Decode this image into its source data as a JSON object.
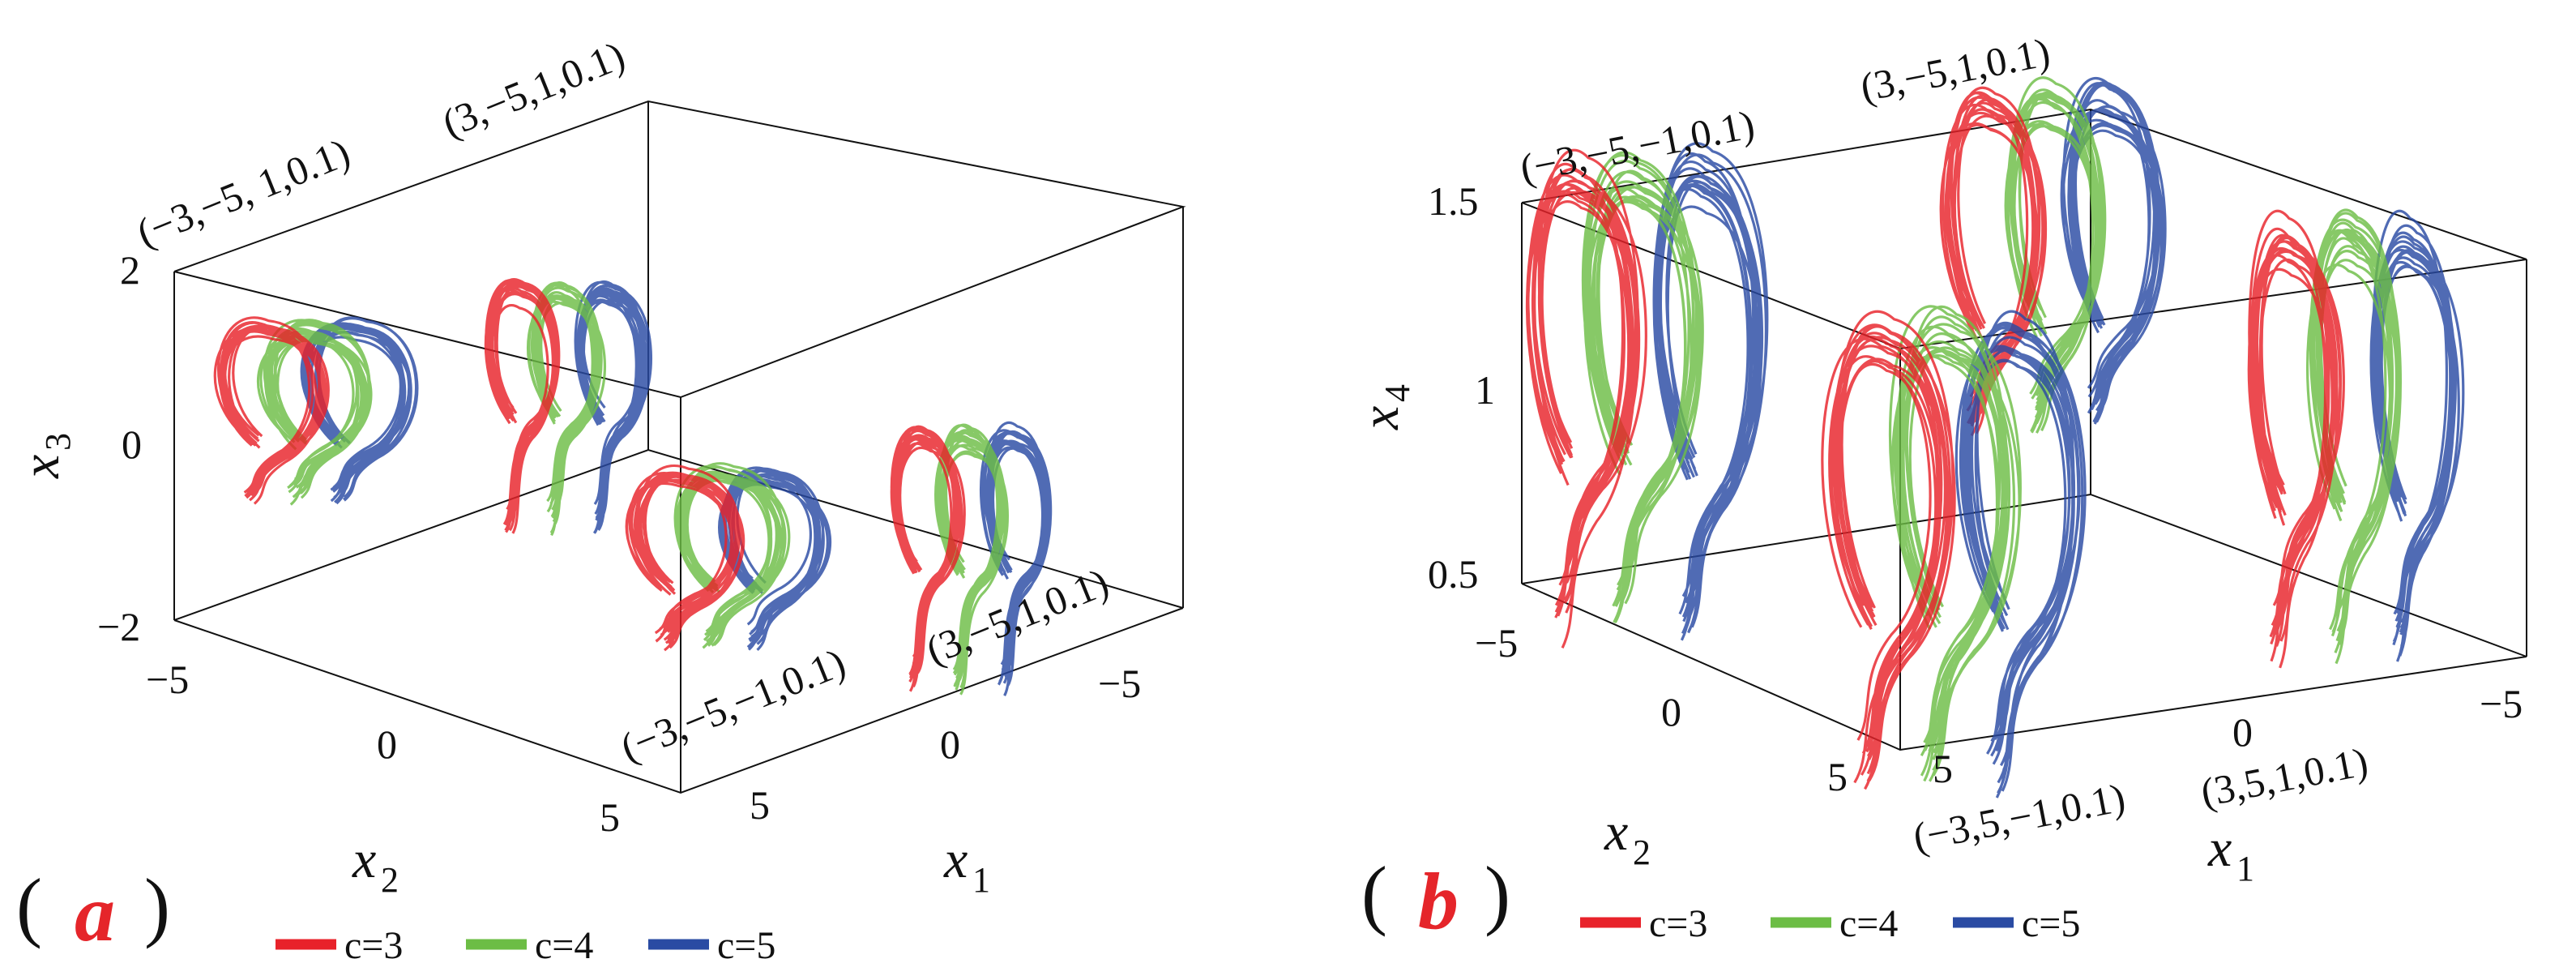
{
  "chart_data": [
    {
      "type": "line",
      "panel_label": "a",
      "xlabel": "x",
      "xlabel_sub": "2",
      "ylabel": "x",
      "ylabel_sub": "1",
      "zlabel": "x",
      "zlabel_sub": "3",
      "y_ticks": [
        "−5",
        "0",
        "5"
      ],
      "x_ticks": [
        "5",
        "0",
        "−5"
      ],
      "z_ticks": [
        "2",
        "0",
        "−2"
      ],
      "xlim": [
        -5,
        5
      ],
      "ylim": [
        -5,
        5
      ],
      "zlim": [
        -2,
        2
      ],
      "corner_labels": [
        "(−3,−5, 1,0.1)",
        "(3,−5,1,0.1)",
        "(−3,−5,−1,0.1)",
        "(3,−5,1,0.1)"
      ],
      "series": [
        {
          "name": "c=3",
          "color": "#e8222a"
        },
        {
          "name": "c=4",
          "color": "#6cbd45"
        },
        {
          "name": "c=5",
          "color": "#2a4ba3"
        }
      ]
    },
    {
      "type": "line",
      "panel_label": "b",
      "xlabel": "x",
      "xlabel_sub": "2",
      "ylabel": "x",
      "ylabel_sub": "1",
      "zlabel": "x",
      "zlabel_sub": "4",
      "y_ticks": [
        "−5",
        "0",
        "5"
      ],
      "x_ticks": [
        "5",
        "0",
        "−5"
      ],
      "z_ticks": [
        "1.5",
        "1",
        "0.5"
      ],
      "xlim": [
        -5,
        5
      ],
      "ylim": [
        -5,
        5
      ],
      "zlim": [
        0.5,
        1.5
      ],
      "corner_labels": [
        "(−3,−5,−1,0.1)",
        "(3,−5,1,0.1)",
        "(−3,5,−1,0.1)",
        "(3,5,1,0.1)"
      ],
      "series": [
        {
          "name": "c=3",
          "color": "#e8222a"
        },
        {
          "name": "c=4",
          "color": "#6cbd45"
        },
        {
          "name": "c=5",
          "color": "#2a4ba3"
        }
      ]
    }
  ]
}
